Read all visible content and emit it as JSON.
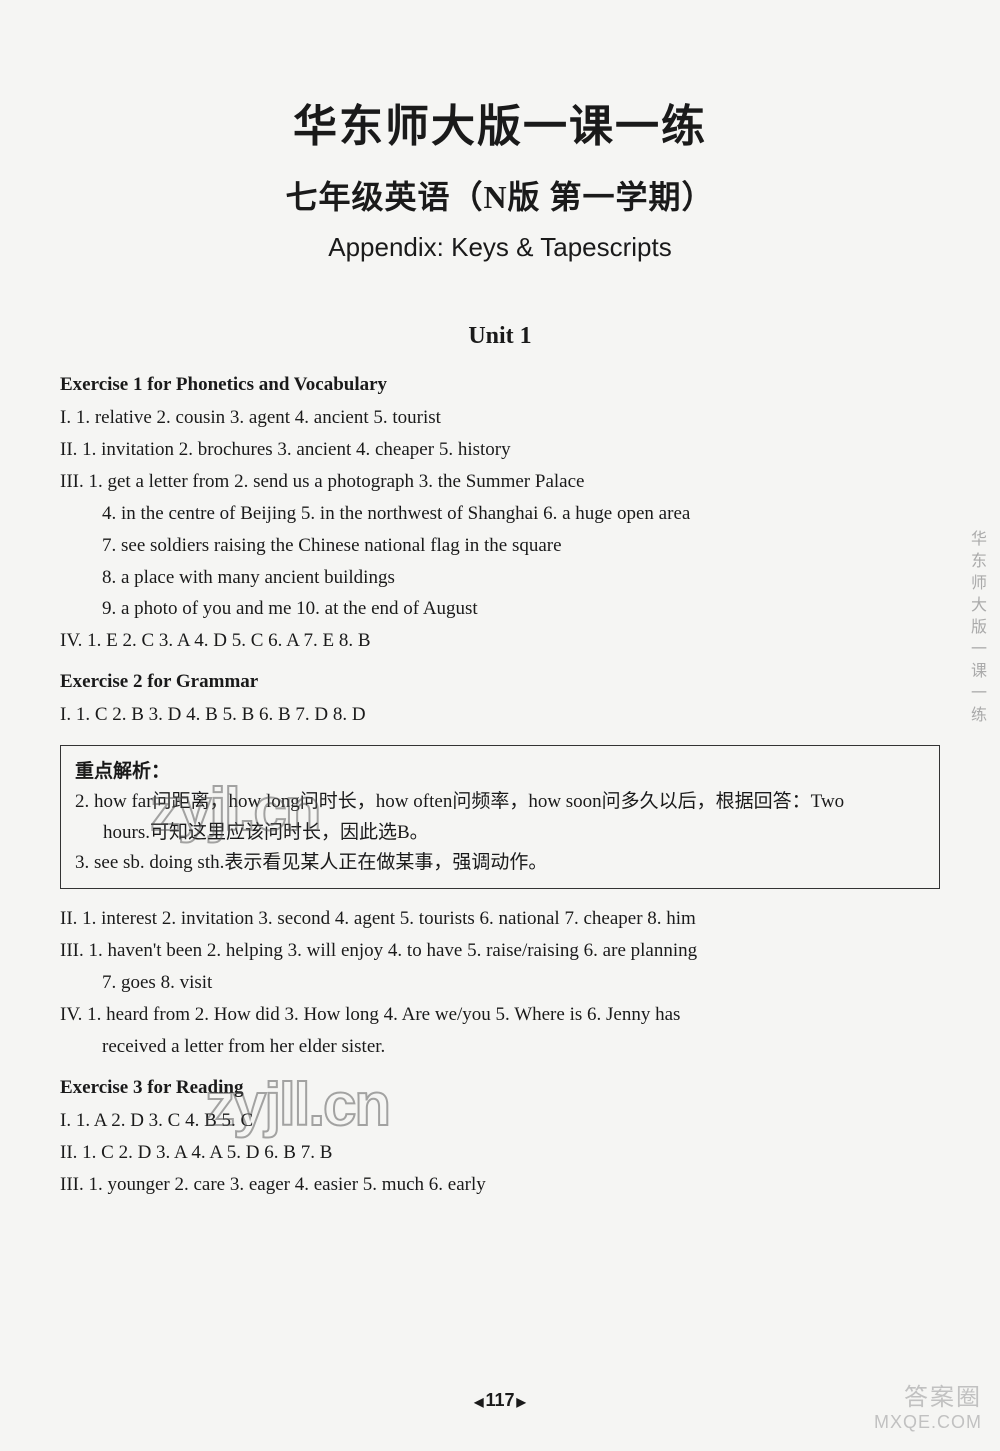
{
  "header": {
    "title_main": "华东师大版一课一练",
    "title_sub": "七年级英语（N版  第一学期）",
    "title_appendix": "Appendix: Keys & Tapescripts"
  },
  "unit": {
    "title": "Unit 1"
  },
  "exercise1": {
    "title": "Exercise 1 for Phonetics and Vocabulary",
    "section_I": "I. 1. relative   2. cousin   3. agent   4. ancient   5. tourist",
    "section_II": "II. 1. invitation   2. brochures   3. ancient   4. cheaper   5. history",
    "section_III_1": "III. 1. get a letter from   2. send us a photograph   3. the Summer Palace",
    "section_III_2": "4. in the centre of Beijing   5. in the northwest of Shanghai   6. a huge open area",
    "section_III_3": "7. see soldiers raising the Chinese national flag in the square",
    "section_III_4": "8. a place with many ancient buildings",
    "section_III_5": "9. a photo of you and me   10. at the end of August",
    "section_IV": "IV. 1. E   2. C   3. A   4. D   5. C   6. A   7. E   8. B"
  },
  "exercise2": {
    "title": "Exercise 2 for Grammar",
    "section_I": "I. 1. C   2. B   3. D   4. B   5. B   6. B   7. D   8. D",
    "analysis_title": "重点解析：",
    "analysis_2a": "2. how far问距离，how long问时长，how often问频率，how soon问多久以后，根据回答：Two",
    "analysis_2b": "hours.可知这里应该问时长，因此选B。",
    "analysis_3": "3. see sb. doing sth.表示看见某人正在做某事，强调动作。",
    "section_II": "II. 1. interest   2. invitation   3. second   4. agent   5. tourists   6. national   7. cheaper   8. him",
    "section_III_1": "III. 1. haven't been   2. helping   3. will enjoy   4. to have   5. raise/raising   6. are planning",
    "section_III_2": "7. goes   8. visit",
    "section_IV_1": "IV. 1. heard from   2. How did   3. How long   4. Are we/you   5. Where is   6. Jenny has",
    "section_IV_2": "received a letter from her elder sister."
  },
  "exercise3": {
    "title": "Exercise 3 for Reading",
    "section_I": "I. 1. A   2. D   3. C   4. B   5. C",
    "section_II": "II. 1. C   2. D   3. A   4. A   5. D   6. B   7. B",
    "section_III": "III. 1. younger   2. care   3. eager   4. easier   5. much   6. early"
  },
  "page_number": "117",
  "side_text": "华东师大版一课一练",
  "watermarks": {
    "wm1": "zyjl.cn",
    "wm2": "zyjll.cn",
    "br_line1": "答案圈",
    "br_line2": "MXQE.COM"
  },
  "styling": {
    "page_bg": "#f5f5f3",
    "text_color": "#1a1a1a",
    "border_color": "#333333",
    "title_main_fontsize": 44,
    "title_sub_fontsize": 32,
    "appendix_fontsize": 26,
    "unit_fontsize": 24,
    "body_fontsize": 19,
    "line_height": 1.68
  }
}
